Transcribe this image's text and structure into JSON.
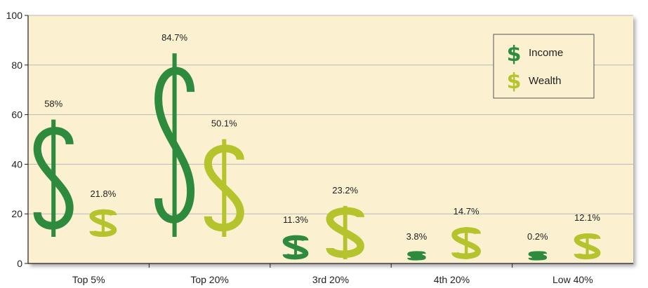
{
  "chart_data": {
    "type": "bar",
    "categories": [
      "Top 5%",
      "Top 20%",
      "3rd 20%",
      "4th 20%",
      "Low 40%"
    ],
    "series": [
      {
        "name": "Income",
        "values": [
          58,
          84.7,
          11.3,
          3.8,
          0.2
        ],
        "labels": [
          "58%",
          "84.7%",
          "11.3%",
          "3.8%",
          "0.2%"
        ],
        "color": "#2e8b3e"
      },
      {
        "name": "Wealth",
        "values": [
          21.8,
          50.1,
          23.2,
          14.7,
          12.1
        ],
        "labels": [
          "21.8%",
          "50.1%",
          "23.2%",
          "14.7%",
          "12.1%"
        ],
        "color": "#b5c42d"
      }
    ],
    "yticks": [
      "0",
      "20",
      "40",
      "60",
      "80",
      "100"
    ],
    "ylim": [
      0,
      100
    ],
    "grid": true,
    "legend": "top-right",
    "legend_symbol": "$",
    "background": "#fbf0cf"
  }
}
